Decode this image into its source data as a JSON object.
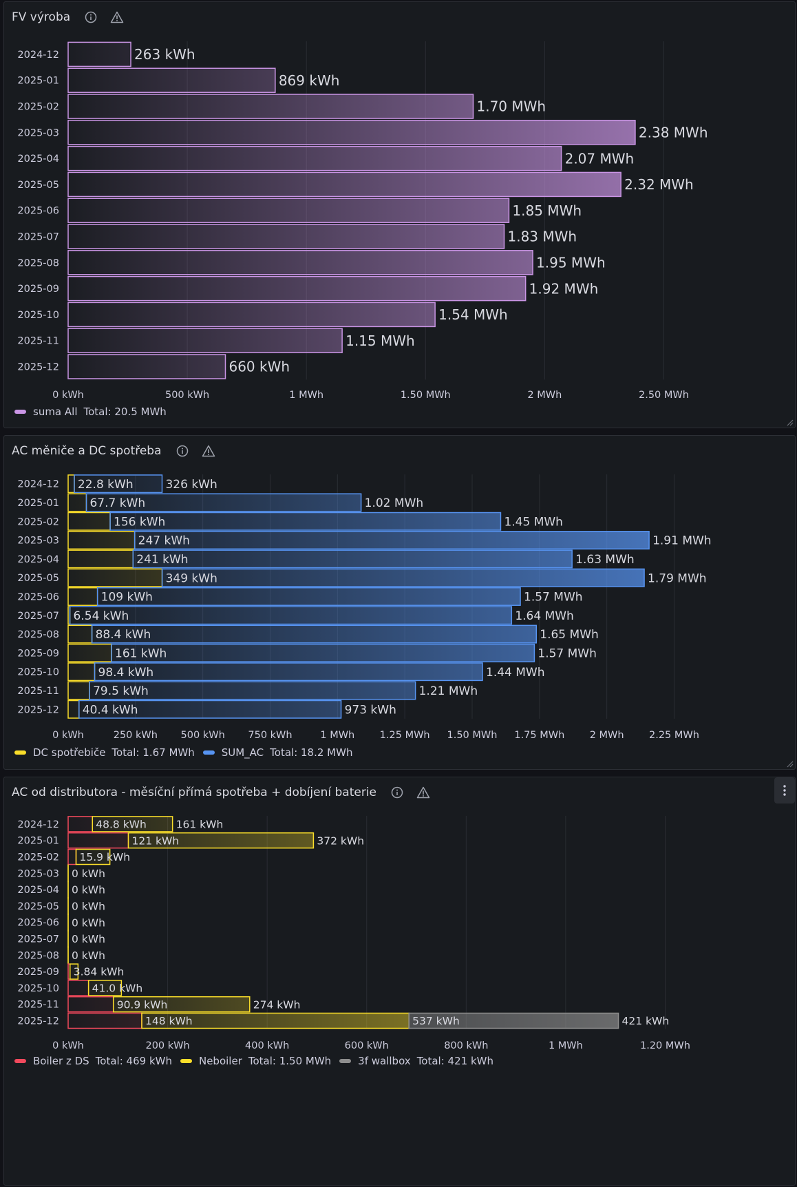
{
  "panels": [
    {
      "title": "FV výroba",
      "icons": [
        "info-icon",
        "warning-icon"
      ],
      "legend": [
        {
          "name": "suma All",
          "total": "Total: 20.5 MWh",
          "color": "#ca95e5"
        }
      ]
    },
    {
      "title": "AC měniče a DC spotřeba",
      "icons": [
        "info-icon",
        "warning-icon"
      ],
      "legend": [
        {
          "name": "DC spotřebiče",
          "total": "Total: 1.67 MWh",
          "color": "#fade2a"
        },
        {
          "name": "SUM_AC",
          "total": "Total: 18.2 MWh",
          "color": "#5794f2"
        }
      ]
    },
    {
      "title": "AC od distributora - měsíční přímá spotřeba + dobíjení baterie",
      "icons": [
        "info-icon",
        "warning-icon"
      ],
      "menu_icon": "more-vertical-icon",
      "legend": [
        {
          "name": "Boiler z DS",
          "total": "Total: 469 kWh",
          "color": "#f2495c"
        },
        {
          "name": "Neboiler",
          "total": "Total: 1.50 MWh",
          "color": "#fade2a"
        },
        {
          "name": "3f wallbox",
          "total": "Total: 421 kWh",
          "color": "#8e8e8e"
        }
      ]
    }
  ],
  "chart_data": [
    {
      "type": "bar",
      "orientation": "horizontal",
      "title": "FV výroba",
      "unit": "kWh",
      "categories": [
        "2024-12",
        "2025-01",
        "2025-02",
        "2025-03",
        "2025-04",
        "2025-05",
        "2025-06",
        "2025-07",
        "2025-08",
        "2025-09",
        "2025-10",
        "2025-11",
        "2025-12"
      ],
      "series": [
        {
          "name": "suma All",
          "color": "#ca95e5",
          "values": [
            263,
            869,
            1700,
            2380,
            2070,
            2320,
            1850,
            1830,
            1950,
            1920,
            1540,
            1150,
            660
          ],
          "labels": [
            "263 kWh",
            "869 kWh",
            "1.70 MWh",
            "2.38 MWh",
            "2.07 MWh",
            "2.32 MWh",
            "1.85 MWh",
            "1.83 MWh",
            "1.95 MWh",
            "1.92 MWh",
            "1.54 MWh",
            "1.15 MWh",
            "660 kWh"
          ]
        }
      ],
      "xlim": [
        0,
        2750
      ],
      "xticks": [
        0,
        500,
        1000,
        1500,
        2000,
        2500
      ],
      "xtick_labels": [
        "0 kWh",
        "500 kWh",
        "1 MWh",
        "1.50 MWh",
        "2 MWh",
        "2.50 MWh"
      ],
      "stacked": false,
      "grid": true,
      "legend_position": "bottom-left"
    },
    {
      "type": "bar",
      "orientation": "horizontal",
      "title": "AC měniče a DC spotřeba",
      "unit": "kWh",
      "categories": [
        "2024-12",
        "2025-01",
        "2025-02",
        "2025-03",
        "2025-04",
        "2025-05",
        "2025-06",
        "2025-07",
        "2025-08",
        "2025-09",
        "2025-10",
        "2025-11",
        "2025-12"
      ],
      "series": [
        {
          "name": "DC spotřebiče",
          "color": "#fade2a",
          "values": [
            22.8,
            67.7,
            156,
            247,
            241,
            349,
            109,
            6.54,
            88.4,
            161,
            98.4,
            79.5,
            40.4
          ],
          "labels": [
            "22.8 kWh",
            "67.7 kWh",
            "156 kWh",
            "247 kWh",
            "241 kWh",
            "349 kWh",
            "109 kWh",
            "6.54 kWh",
            "88.4 kWh",
            "161 kWh",
            "98.4 kWh",
            "79.5 kWh",
            "40.4 kWh"
          ]
        },
        {
          "name": "SUM_AC",
          "color": "#5794f2",
          "values": [
            326,
            1020,
            1450,
            1910,
            1630,
            1790,
            1570,
            1640,
            1650,
            1570,
            1440,
            1210,
            973
          ],
          "labels": [
            "326 kWh",
            "1.02 MWh",
            "1.45 MWh",
            "1.91 MWh",
            "1.63 MWh",
            "1.79 MWh",
            "1.57 MWh",
            "1.64 MWh",
            "1.65 MWh",
            "1.57 MWh",
            "1.44 MWh",
            "1.21 MWh",
            "973 kWh"
          ]
        }
      ],
      "xlim": [
        0,
        2420
      ],
      "xticks": [
        0,
        250,
        500,
        750,
        1000,
        1250,
        1500,
        1750,
        2000,
        2250
      ],
      "xtick_labels": [
        "0 kWh",
        "250 kWh",
        "500 kWh",
        "750 kWh",
        "1 MWh",
        "1.25 MWh",
        "1.50 MWh",
        "1.75 MWh",
        "2 MWh",
        "2.25 MWh"
      ],
      "stacked": true,
      "grid": true,
      "legend_position": "bottom-left"
    },
    {
      "type": "bar",
      "orientation": "horizontal",
      "title": "AC od distributora - měsíční přímá spotřeba + dobíjení baterie",
      "unit": "kWh",
      "categories": [
        "2024-12",
        "2025-01",
        "2025-02",
        "2025-03",
        "2025-04",
        "2025-05",
        "2025-06",
        "2025-07",
        "2025-08",
        "2025-09",
        "2025-10",
        "2025-11",
        "2025-12"
      ],
      "series": [
        {
          "name": "Boiler z DS",
          "color": "#f2495c",
          "values": [
            48.8,
            121,
            15.9,
            0,
            0,
            0,
            0,
            0,
            0,
            3.84,
            41.0,
            90.9,
            148
          ],
          "labels": [
            "48.8 kWh",
            "121 kWh",
            "15.9 kWh",
            "0 kWh",
            "0 kWh",
            "0 kWh",
            "0 kWh",
            "0 kWh",
            "0 kWh",
            "3.84 kWh",
            "41.0 kWh",
            "90.9 kWh",
            "148 kWh"
          ]
        },
        {
          "name": "Neboiler",
          "color": "#fade2a",
          "values": [
            161,
            372,
            68,
            0,
            0,
            0,
            0,
            0,
            0,
            16,
            66,
            274,
            537
          ],
          "labels": [
            "161 kWh",
            "372 kWh",
            "",
            "",
            "",
            "",
            "",
            "",
            "",
            "",
            "",
            "274 kWh",
            "537 kWh"
          ]
        },
        {
          "name": "3f wallbox",
          "color": "#8e8e8e",
          "values": [
            0,
            0,
            0,
            0,
            0,
            0,
            0,
            0,
            0,
            0,
            0,
            0,
            421
          ],
          "labels": [
            "",
            "",
            "",
            "",
            "",
            "",
            "",
            "",
            "",
            "",
            "",
            "",
            "421 kWh"
          ]
        }
      ],
      "xlim": [
        0,
        1310
      ],
      "xticks": [
        0,
        200,
        400,
        600,
        800,
        1000,
        1200
      ],
      "xtick_labels": [
        "0 kWh",
        "200 kWh",
        "400 kWh",
        "600 kWh",
        "800 kWh",
        "1 MWh",
        "1.20 MWh"
      ],
      "stacked": true,
      "grid": true,
      "legend_position": "bottom-left"
    }
  ]
}
